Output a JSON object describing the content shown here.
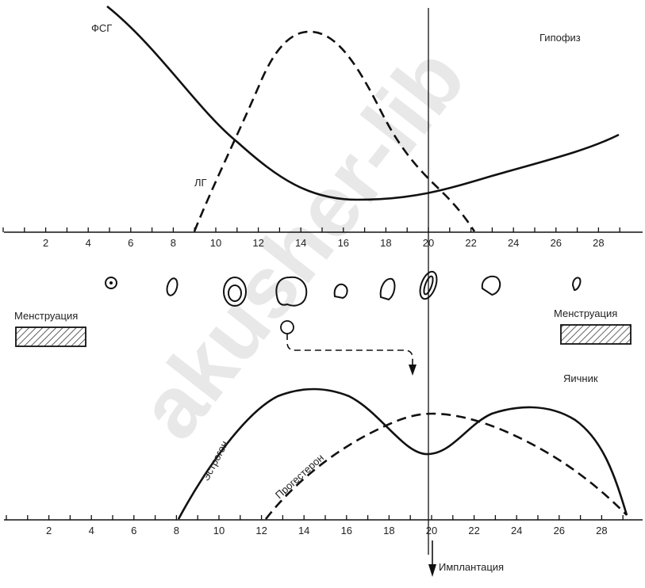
{
  "pituitary": {
    "label": "Гипофиз",
    "fsh_label": "ФСГ",
    "lh_label": "ЛГ",
    "axis_labels": [
      "2",
      "4",
      "6",
      "8",
      "10",
      "12",
      "14",
      "16",
      "18",
      "20",
      "22",
      "24",
      "26",
      "28"
    ]
  },
  "ovary": {
    "label": "Яичник",
    "estrogen_label": "Эстроген",
    "progesterone_label": "Прогестерон",
    "menstruation_left": "Менструация",
    "menstruation_right": "Менструация",
    "axis_labels": [
      "2",
      "4",
      "6",
      "8",
      "10",
      "12",
      "14",
      "16",
      "18",
      "20",
      "22",
      "24",
      "26",
      "28"
    ]
  },
  "implantation": "Имплантация",
  "watermark": "akusher-lib"
}
